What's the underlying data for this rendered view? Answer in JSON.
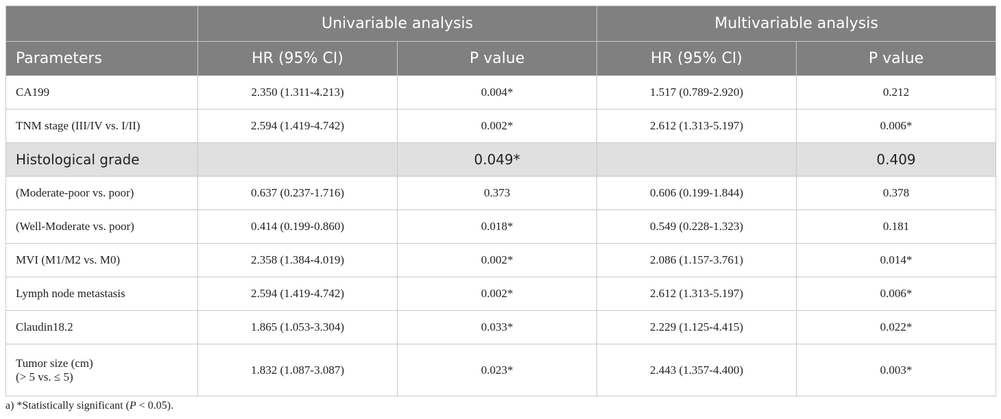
{
  "header": {
    "groups": [
      "Univariable analysis",
      "Multivariable analysis"
    ],
    "columns": [
      "Parameters",
      "HR (95% CI)",
      "P value",
      "HR (95% CI)",
      "P value"
    ]
  },
  "table": {
    "rows": [
      {
        "cells": [
          "CA199",
          "2.350 (1.311-4.213)",
          "0.004*",
          "1.517 (0.789-2.920)",
          "0.212"
        ]
      },
      {
        "cells": [
          "TNM stage (III/IV vs. I/II)",
          "2.594 (1.419-4.742)",
          "0.002*",
          "2.612 (1.313-5.197)",
          "0.006*"
        ]
      },
      {
        "cells": [
          "Histological grade",
          null,
          "0.049*",
          null,
          "0.409"
        ],
        "highlight": true
      },
      {
        "cells": [
          "(Moderate-poor vs. poor)",
          "0.637 (0.237-1.716)",
          "0.373",
          "0.606 (0.199-1.844)",
          "0.378"
        ]
      },
      {
        "cells": [
          "(Well-Moderate vs. poor)",
          "0.414 (0.199-0.860)",
          "0.018*",
          "0.549 (0.228-1.323)",
          "0.181"
        ]
      },
      {
        "cells": [
          "MVI (M1/M2 vs. M0)",
          "2.358 (1.384-4.019)",
          "0.002*",
          "2.086 (1.157-3.761)",
          "0.014*"
        ]
      },
      {
        "cells": [
          "Lymph node metastasis",
          "2.594 (1.419-4.742)",
          "0.002*",
          "2.612 (1.313-5.197)",
          "0.006*"
        ]
      },
      {
        "cells": [
          "Claudin18.2",
          "1.865 (1.053-3.304)",
          "0.033*",
          "2.229 (1.125-4.415)",
          "0.022*"
        ]
      },
      {
        "cells": [
          "Tumor size (cm)\n(> 5 vs. ≤ 5)",
          "1.832 (1.087-3.087)",
          "0.023*",
          "2.443 (1.357-4.400)",
          "0.003*"
        ]
      }
    ]
  },
  "footnote": {
    "prefix": "a) *Statistically significant (",
    "italic": "P",
    "suffix": " < 0.05)."
  }
}
